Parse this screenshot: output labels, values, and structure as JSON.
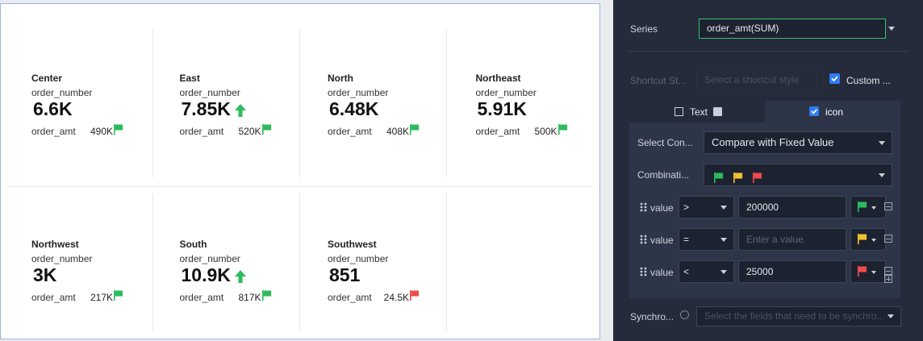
{
  "cards": [
    {
      "region": "Center",
      "metric_label": "order_number",
      "metric": "6.6K",
      "sub_label": "order_amt",
      "sub_value": "490K",
      "flag_color": "#2dbb5d",
      "arrow": false
    },
    {
      "region": "East",
      "metric_label": "order_number",
      "metric": "7.85K",
      "sub_label": "order_amt",
      "sub_value": "520K",
      "flag_color": "#2dbb5d",
      "arrow": true
    },
    {
      "region": "North",
      "metric_label": "order_number",
      "metric": "6.48K",
      "sub_label": "order_amt",
      "sub_value": "408K",
      "flag_color": "#2dbb5d",
      "arrow": false
    },
    {
      "region": "Northeast",
      "metric_label": "order_number",
      "metric": "5.91K",
      "sub_label": "order_amt",
      "sub_value": "500K",
      "flag_color": "#2dbb5d",
      "arrow": false
    },
    {
      "region": "Northwest",
      "metric_label": "order_number",
      "metric": "3K",
      "sub_label": "order_amt",
      "sub_value": "217K",
      "flag_color": "#2dbb5d",
      "arrow": false
    },
    {
      "region": "South",
      "metric_label": "order_number",
      "metric": "10.9K",
      "sub_label": "order_amt",
      "sub_value": "817K",
      "flag_color": "#2dbb5d",
      "arrow": true
    },
    {
      "region": "Southwest",
      "metric_label": "order_number",
      "metric": "851",
      "sub_label": "order_amt",
      "sub_value": "24.5K",
      "flag_color": "#f04b4b",
      "arrow": false
    }
  ],
  "settings": {
    "series_label": "Series",
    "series_value": "order_amt(SUM)",
    "shortcut_label": "Shortcut St...",
    "shortcut_placeholder": "Select a shortcut style",
    "custom_label": "Custom ...",
    "tab_text": "Text",
    "tab_icon": "icon",
    "select_condition_label": "Select Con...",
    "select_condition_value": "Compare with Fixed Value",
    "combination_label": "Combinati...",
    "combination_colors": [
      "#2dbb5d",
      "#f2c230",
      "#f04b4b"
    ],
    "rules": [
      {
        "label": "value",
        "operator": ">",
        "input": "200000",
        "placeholder": false,
        "flag_color": "#2dbb5d"
      },
      {
        "label": "value",
        "operator": "=",
        "input": "Enter a value.",
        "placeholder": true,
        "flag_color": "#f2c230"
      },
      {
        "label": "value",
        "operator": "<",
        "input": "25000",
        "placeholder": false,
        "flag_color": "#f04b4b"
      }
    ],
    "sync_label": "Synchro...",
    "sync_placeholder": "Select the fields that need to be synchro..."
  }
}
